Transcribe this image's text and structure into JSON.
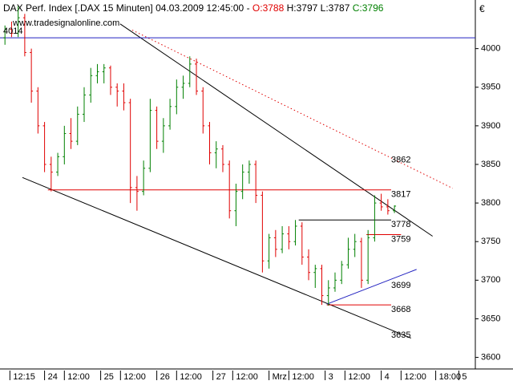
{
  "header": {
    "symbol": "DAX Perf. Index [.DAX  15 Minuten]",
    "datetime": "04.03.2009 12:45:00",
    "separator": "-",
    "open": "O:3788",
    "high": "H:3797",
    "low": "L:3787",
    "close": "C:3796"
  },
  "watermark": "www.tradesignalonline.com",
  "currency": "€",
  "chart_data": {
    "type": "ohlc",
    "x": [
      -24,
      -20,
      -16,
      -12,
      -8,
      -4,
      0,
      4,
      8,
      12,
      16,
      20,
      24,
      28,
      32,
      36,
      40,
      44,
      48,
      52,
      56,
      60,
      64,
      68,
      72,
      76,
      80,
      84,
      88,
      92,
      96,
      100,
      104,
      108,
      112,
      116,
      120,
      124,
      128,
      132,
      136,
      140,
      144,
      148,
      152,
      156,
      160,
      164,
      168,
      172,
      176,
      180,
      184,
      188,
      192,
      196,
      200,
      204,
      208,
      212
    ],
    "open": [
      4014,
      4025,
      4020,
      4040,
      3995,
      3945,
      3900,
      3850,
      3840,
      3860,
      3890,
      3880,
      3915,
      3940,
      3965,
      3970,
      3975,
      3950,
      3945,
      3930,
      3820,
      3815,
      3845,
      3920,
      3880,
      3900,
      3925,
      3950,
      3955,
      3980,
      3945,
      3900,
      3865,
      3870,
      3850,
      3790,
      3815,
      3840,
      3850,
      3810,
      3725,
      3755,
      3740,
      3760,
      3750,
      3770,
      3730,
      3710,
      3715,
      3680,
      3690,
      3700,
      3720,
      3740,
      3750,
      3700,
      3755,
      3800,
      3795,
      3790
    ],
    "high": [
      4030,
      4035,
      4055,
      4045,
      4000,
      3950,
      3905,
      3860,
      3865,
      3900,
      3910,
      3925,
      3950,
      3975,
      3980,
      3980,
      3978,
      3955,
      3955,
      3935,
      3835,
      3855,
      3935,
      3925,
      3910,
      3935,
      3960,
      3965,
      3990,
      3987,
      3950,
      3905,
      3880,
      3875,
      3855,
      3825,
      3850,
      3855,
      3855,
      3815,
      3760,
      3765,
      3770,
      3770,
      3778,
      3775,
      3740,
      3720,
      3720,
      3700,
      3710,
      3725,
      3755,
      3760,
      3755,
      3765,
      3810,
      3812,
      3805,
      3797
    ],
    "low": [
      4005,
      4015,
      4015,
      3990,
      3930,
      3890,
      3840,
      3815,
      3835,
      3850,
      3870,
      3875,
      3905,
      3930,
      3955,
      3955,
      3940,
      3925,
      3920,
      3800,
      3790,
      3810,
      3840,
      3870,
      3865,
      3895,
      3915,
      3935,
      3950,
      3940,
      3890,
      3850,
      3845,
      3840,
      3780,
      3770,
      3805,
      3825,
      3800,
      3710,
      3715,
      3730,
      3735,
      3740,
      3745,
      3720,
      3700,
      3690,
      3668,
      3667,
      3685,
      3695,
      3715,
      3730,
      3690,
      3695,
      3750,
      3790,
      3785,
      3787
    ],
    "close": [
      4025,
      4020,
      4040,
      3995,
      3945,
      3900,
      3850,
      3840,
      3860,
      3890,
      3880,
      3915,
      3940,
      3965,
      3970,
      3975,
      3950,
      3945,
      3930,
      3820,
      3815,
      3845,
      3920,
      3880,
      3900,
      3925,
      3950,
      3955,
      3980,
      3945,
      3900,
      3865,
      3870,
      3850,
      3790,
      3815,
      3840,
      3850,
      3810,
      3725,
      3755,
      3740,
      3760,
      3750,
      3770,
      3730,
      3710,
      3715,
      3680,
      3690,
      3700,
      3720,
      3740,
      3750,
      3700,
      3755,
      3800,
      3795,
      3790,
      3796
    ],
    "up_color": "#008000",
    "down_color": "#e00000",
    "xlim": [
      -27,
      261
    ],
    "ylim": [
      3585,
      4063
    ],
    "xticks": [
      {
        "value": -21,
        "label": "12:15"
      },
      24,
      {
        "value": 12,
        "label": "12:00"
      },
      25,
      {
        "value": 46,
        "label": "12:00"
      },
      26,
      {
        "value": 80,
        "label": "12:00"
      },
      27,
      {
        "value": 114,
        "label": "12:00"
      },
      {
        "value": 136,
        "label": "Mrz"
      },
      {
        "value": 148,
        "label": "12:00"
      },
      3,
      {
        "value": 182,
        "label": "12:00"
      },
      4,
      {
        "value": 216,
        "label": "12:00"
      },
      {
        "value": 237,
        "label": "18:00"
      },
      5
    ],
    "day_positions": [
      0,
      34,
      68,
      102,
      170,
      204,
      251
    ],
    "yticks": [
      3600,
      3650,
      3700,
      3750,
      3800,
      3850,
      3900,
      3950,
      4000
    ],
    "lines": [
      {
        "x": [
          45.8,
          235.1
        ],
        "y": [
          4032,
          3757
        ],
        "color": "#000000",
        "dash": false
      },
      {
        "x": [
          53.1,
          247.3
        ],
        "y": [
          4024,
          3819
        ],
        "color": "#e00000",
        "dash": true
      },
      {
        "x": [
          -13.4,
          222
        ],
        "y": [
          3833,
          3625
        ],
        "color": "#000000",
        "dash": false
      },
      {
        "x": [
          171,
          225.4
        ],
        "y": [
          3669,
          3714
        ],
        "color": "#2020c0",
        "dash": false
      },
      {
        "x": [
          2,
          210
        ],
        "y": [
          3817,
          3817
        ],
        "color": "#e00000",
        "dash": false
      },
      {
        "x": [
          154,
          210
        ],
        "y": [
          3778,
          3778
        ],
        "color": "#000000",
        "dash": false
      },
      {
        "x": [
          195,
          216
        ],
        "y": [
          3759,
          3759
        ],
        "color": "#e00000",
        "dash": false
      },
      {
        "x": [
          171,
          210
        ],
        "y": [
          3668,
          3668
        ],
        "color": "#e00000",
        "dash": false
      },
      {
        "x": [
          -27,
          261
        ],
        "y": [
          4014,
          4014
        ],
        "color": "#2020c0",
        "dash": false
      }
    ],
    "levels": [
      {
        "value": 3862,
        "color": "#e00000"
      },
      {
        "value": 3817,
        "color": "#e00000"
      },
      {
        "value": 3778,
        "color": "#000000"
      },
      {
        "value": 3759,
        "color": "#e00000"
      },
      {
        "value": 3699,
        "color": "#2020c0"
      },
      {
        "value": 3668,
        "color": "#e00000"
      },
      {
        "value": 3635,
        "color": "#000000"
      },
      {
        "value": 4014,
        "color": "#2020c0"
      }
    ]
  }
}
